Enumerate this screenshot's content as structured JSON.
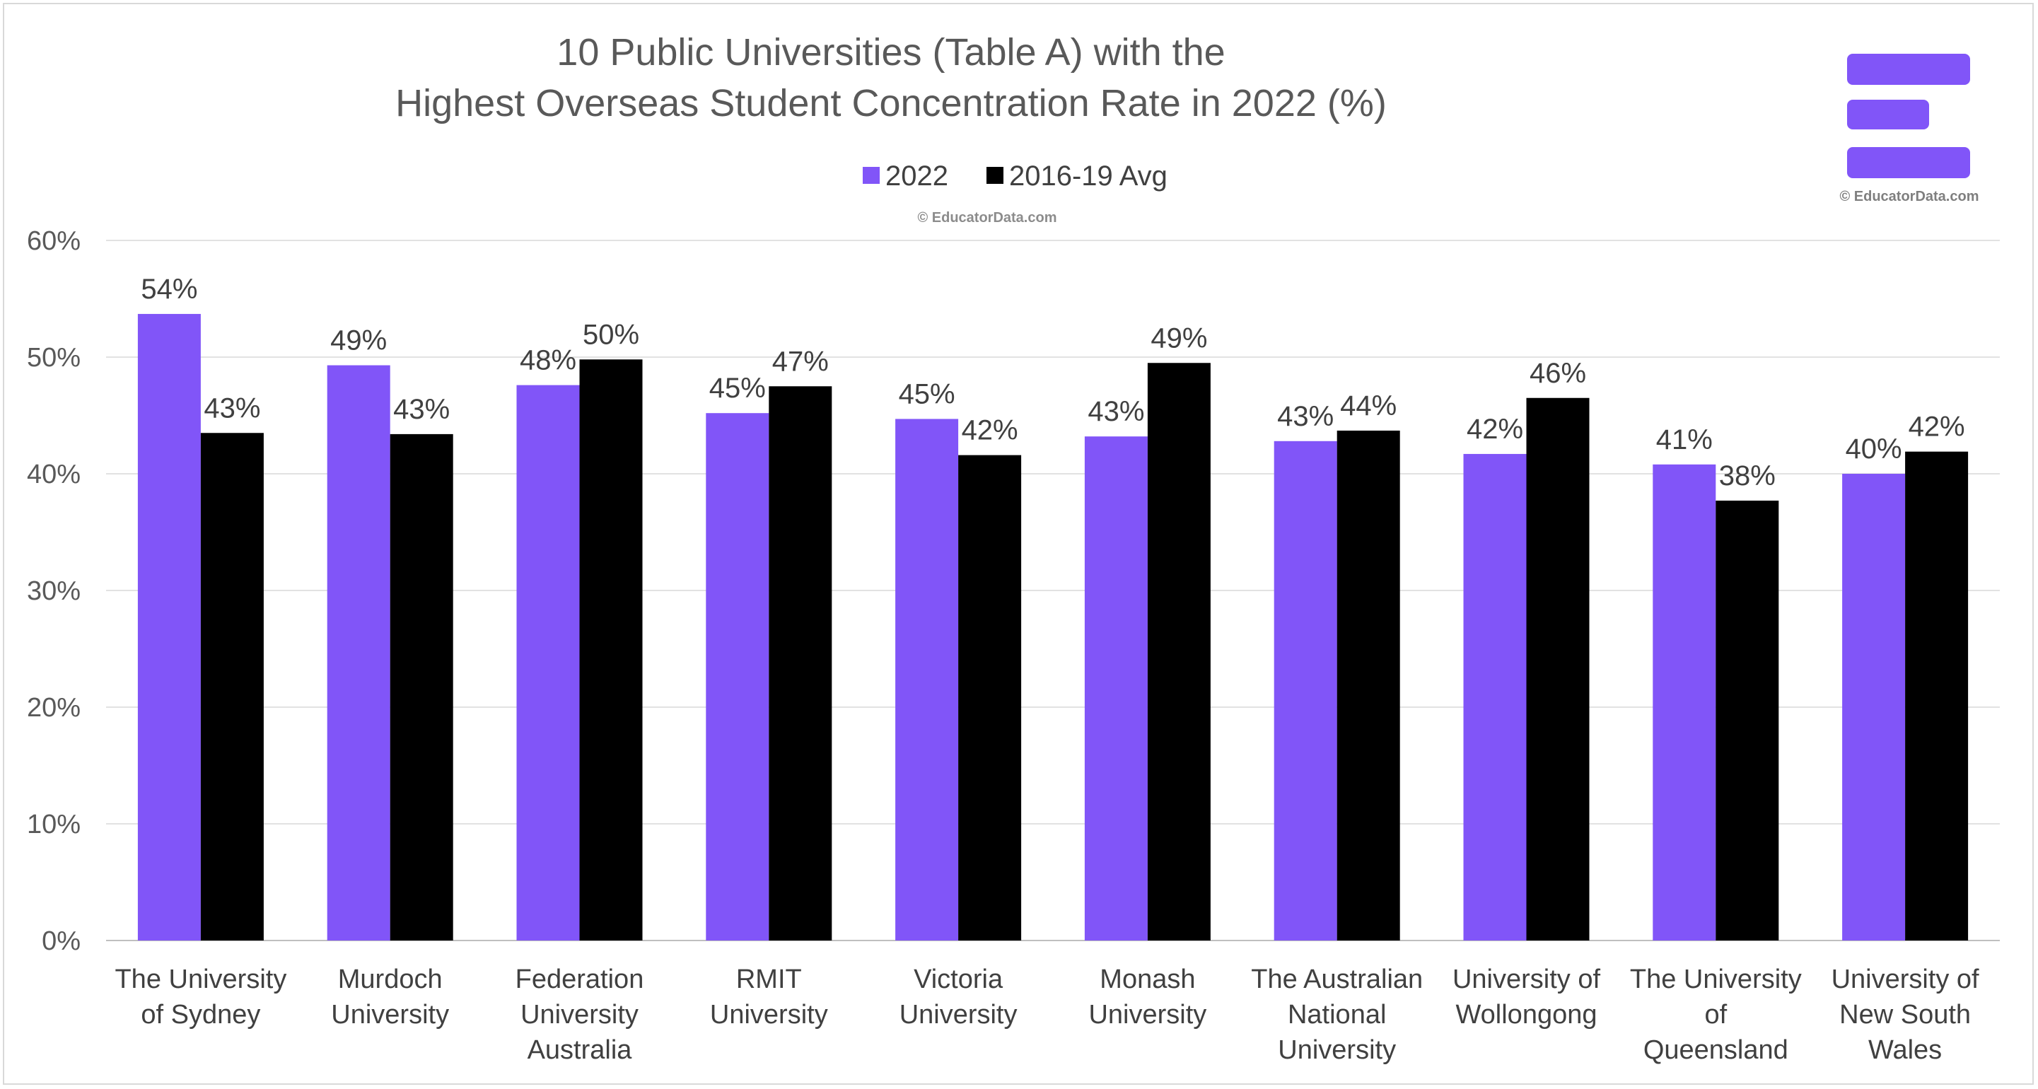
{
  "chart_data": {
    "type": "bar",
    "title_line1": "10 Public Universities (Table A) with the",
    "title_line2": "Highest Overseas Student Concentration Rate in 2022 (%)",
    "watermark_center": "© EducatorData.com",
    "watermark_logo": "© EducatorData.com",
    "categories": [
      [
        "The University",
        "of Sydney"
      ],
      [
        "Murdoch",
        "University"
      ],
      [
        "Federation",
        "University",
        "Australia"
      ],
      [
        "RMIT",
        "University"
      ],
      [
        "Victoria",
        "University"
      ],
      [
        "Monash",
        "University"
      ],
      [
        "The Australian",
        "National",
        "University"
      ],
      [
        "University of",
        "Wollongong"
      ],
      [
        "The University",
        "of",
        "Queensland"
      ],
      [
        "University of",
        "New South",
        "Wales"
      ]
    ],
    "series": [
      {
        "name": "2022",
        "color": "#8155f8",
        "values": [
          53.7,
          49.3,
          47.6,
          45.2,
          44.7,
          43.2,
          42.8,
          41.7,
          40.8,
          40.0
        ],
        "labels": [
          "54%",
          "49%",
          "48%",
          "45%",
          "45%",
          "43%",
          "43%",
          "42%",
          "41%",
          "40%"
        ]
      },
      {
        "name": "2016-19 Avg",
        "color": "#000000",
        "values": [
          43.5,
          43.4,
          49.8,
          47.5,
          41.6,
          49.5,
          43.7,
          46.5,
          37.7,
          41.9
        ],
        "labels": [
          "43%",
          "43%",
          "50%",
          "47%",
          "42%",
          "49%",
          "44%",
          "46%",
          "38%",
          "42%"
        ]
      }
    ],
    "yticks": [
      "0%",
      "10%",
      "20%",
      "30%",
      "40%",
      "50%",
      "60%"
    ],
    "ylim": [
      0,
      60
    ],
    "grid": true,
    "legend_position": "top-center",
    "logo_color": "#8155f8"
  }
}
